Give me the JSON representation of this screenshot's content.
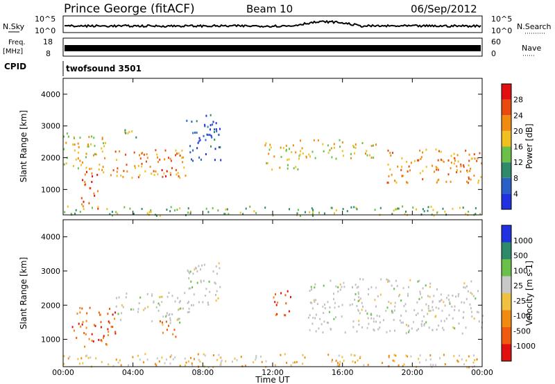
{
  "header": {
    "station": "Prince George (fitACF)",
    "beam": "Beam 10",
    "date": "06/Sep/2012"
  },
  "strips": {
    "nsky_label": "N.Sky",
    "nsky_ticks": [
      "10^5",
      "10^0"
    ],
    "nsearch_label": "N.Search",
    "nsearch_ticks": [
      "10^5",
      "10^0"
    ],
    "freq_label_1": "Freq.",
    "freq_label_2": "[MHz]",
    "freq_ticks": [
      "18",
      "8"
    ],
    "nave_label": "Nave",
    "nave_ticks": [
      "60",
      "0"
    ],
    "cpid_label": "CPID",
    "cpid_value": "twofsound 3501"
  },
  "colors": {
    "power_scale": [
      "#1f31e0",
      "#2860c8",
      "#2e8a6a",
      "#6bc04a",
      "#f0c020",
      "#f08a10",
      "#e84a10",
      "#e01010"
    ],
    "velocity_scale": [
      "#e01010",
      "#f05a10",
      "#f08a10",
      "#f0c040",
      "#c8c8c8",
      "#6bc04a",
      "#2e8a6a",
      "#1f31e0"
    ],
    "ground_scatter": "#c0c0c0"
  },
  "chart_data": [
    {
      "type": "heatmap",
      "name": "power",
      "ylabel": "Slant Range [km]",
      "ylim": [
        200,
        4500
      ],
      "yticks": [
        "1000",
        "2000",
        "3000",
        "4000"
      ],
      "xticks": [
        "00:00",
        "04:00",
        "08:00",
        "12:00",
        "16:00",
        "20:00",
        "00:00"
      ],
      "xlim_hours": [
        0,
        24
      ],
      "colorbar_label": "Power [dB]",
      "colorbar_ticks": [
        "4",
        "8",
        "12",
        "16",
        "20",
        "24",
        "28"
      ],
      "regions": [
        {
          "t0": 0.0,
          "t1": 2.5,
          "r0": 1500,
          "r1": 2800,
          "level": 4
        },
        {
          "t0": 1.0,
          "t1": 2.0,
          "r0": 400,
          "r1": 1600,
          "level": 6
        },
        {
          "t0": 2.5,
          "t1": 7.0,
          "r0": 1400,
          "r1": 2300,
          "level": 5
        },
        {
          "t0": 3.5,
          "t1": 4.5,
          "r0": 2500,
          "r1": 2900,
          "level": 3
        },
        {
          "t0": 5.5,
          "t1": 6.0,
          "r0": 1200,
          "r1": 1700,
          "level": 7
        },
        {
          "t0": 7.0,
          "t1": 9.0,
          "r0": 1900,
          "r1": 3400,
          "level": 1
        },
        {
          "t0": 11.5,
          "t1": 13.5,
          "r0": 1600,
          "r1": 2500,
          "level": 4
        },
        {
          "t0": 13.5,
          "t1": 18.0,
          "r0": 2000,
          "r1": 2600,
          "level": 4
        },
        {
          "t0": 18.5,
          "t1": 24.0,
          "r0": 1200,
          "r1": 2300,
          "level": 5
        },
        {
          "t0": 0.0,
          "t1": 24.0,
          "r0": 200,
          "r1": 500,
          "level": 3
        }
      ]
    },
    {
      "type": "heatmap",
      "name": "velocity",
      "ylabel": "Slant Range [km]",
      "ylim": [
        200,
        4500
      ],
      "yticks": [
        "1000",
        "2000",
        "3000",
        "4000"
      ],
      "xticks": [
        "00:00",
        "04:00",
        "08:00",
        "12:00",
        "16:00",
        "20:00",
        "00:00"
      ],
      "xlim_hours": [
        0,
        24
      ],
      "xlabel": "Time UT",
      "colorbar_label": "Velocity [m s-1]",
      "colorbar_ticks": [
        "-1000",
        "-500",
        "-100",
        "-25",
        "25",
        "100",
        "500",
        "1000"
      ],
      "regions": [
        {
          "t0": 0.5,
          "t1": 3.0,
          "r0": 800,
          "r1": 2000,
          "level": 1
        },
        {
          "t0": 3.0,
          "t1": 7.0,
          "r0": 1500,
          "r1": 2400,
          "level": 4
        },
        {
          "t0": 5.5,
          "t1": 6.5,
          "r0": 1000,
          "r1": 1600,
          "level": 2
        },
        {
          "t0": 7.0,
          "t1": 9.0,
          "r0": 1800,
          "r1": 3300,
          "level": 4
        },
        {
          "t0": 12.0,
          "t1": 13.0,
          "r0": 1600,
          "r1": 2500,
          "level": 1
        },
        {
          "t0": 14.0,
          "t1": 24.0,
          "r0": 1200,
          "r1": 2800,
          "level": 4
        },
        {
          "t0": 0.0,
          "t1": 24.0,
          "r0": 200,
          "r1": 600,
          "level": 3
        }
      ]
    }
  ]
}
